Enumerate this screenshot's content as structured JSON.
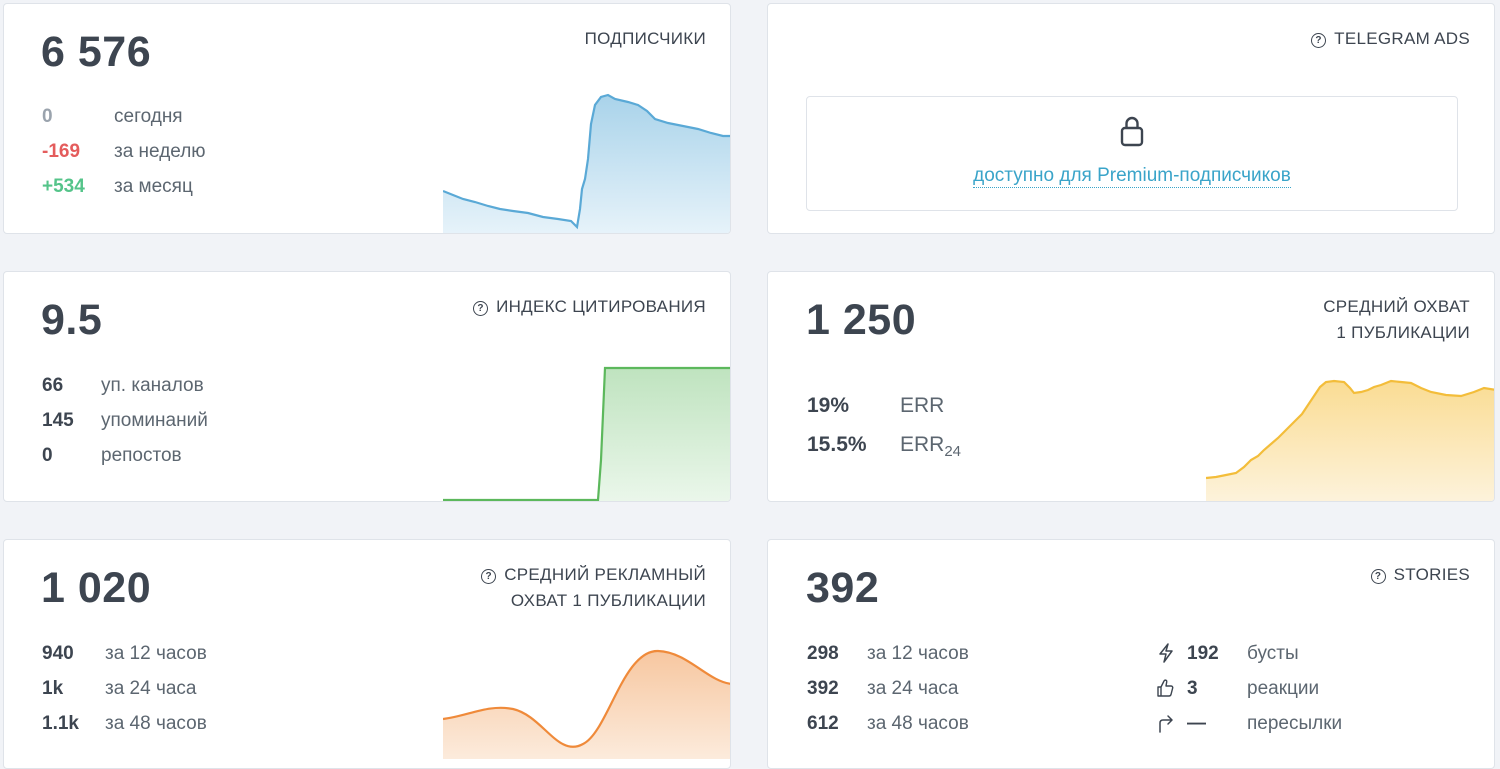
{
  "subscribers": {
    "title": "ПОДПИСЧИКИ",
    "total": "6 576",
    "rows": [
      {
        "value": "0",
        "label": "сегодня"
      },
      {
        "value": "-169",
        "label": "за неделю"
      },
      {
        "value": "+534",
        "label": "за месяц"
      }
    ],
    "chart_color": "#5aa9d6"
  },
  "telegram_ads": {
    "title": "TELEGRAM ADS",
    "lock_icon": "lock-icon",
    "premium_link": "доступно для Premium-подписчиков"
  },
  "citation_index": {
    "title": "ИНДЕКС ЦИТИРОВАНИЯ",
    "total": "9.5",
    "rows": [
      {
        "value": "66",
        "label": "уп. каналов"
      },
      {
        "value": "145",
        "label": "упоминаний"
      },
      {
        "value": "0",
        "label": "репостов"
      }
    ],
    "chart_color": "#5cb85c"
  },
  "avg_reach": {
    "title_line1": "СРЕДНИЙ ОХВАТ",
    "title_line2": "1 ПУБЛИКАЦИИ",
    "total": "1 250",
    "rows": [
      {
        "value": "19%",
        "label": "ERR",
        "sub": ""
      },
      {
        "value": "15.5%",
        "label": "ERR",
        "sub": "24"
      }
    ],
    "chart_color": "#f3bd3a"
  },
  "avg_ad_reach": {
    "title_line1": "СРЕДНИЙ РЕКЛАМНЫЙ",
    "title_line2": "ОХВАТ 1 ПУБЛИКАЦИИ",
    "total": "1 020",
    "rows": [
      {
        "value": "940",
        "label": "за 12 часов"
      },
      {
        "value": "1k",
        "label": "за 24 часа"
      },
      {
        "value": "1.1k",
        "label": "за 48 часов"
      }
    ],
    "chart_color": "#ef8a3a"
  },
  "stories": {
    "title": "STORIES",
    "total": "392",
    "rows": [
      {
        "value": "298",
        "label": "за 12 часов"
      },
      {
        "value": "392",
        "label": "за 24 часа"
      },
      {
        "value": "612",
        "label": "за 48 часов"
      }
    ],
    "extra": [
      {
        "icon": "lightning-icon",
        "value": "192",
        "label": "бусты"
      },
      {
        "icon": "thumbs-up-icon",
        "value": "3",
        "label": "реакции"
      },
      {
        "icon": "share-arrow-icon",
        "value": "—",
        "label": "пересылки"
      }
    ]
  }
}
